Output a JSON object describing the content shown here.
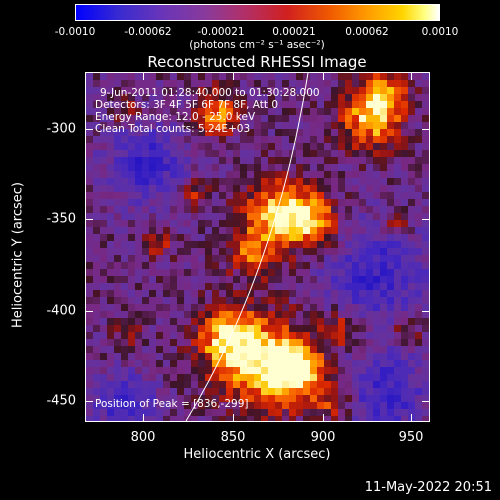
{
  "colorbar": {
    "ticks": [
      "-0.0010",
      "-0.00062",
      "-0.00021",
      "0.00021",
      "0.00062",
      "0.0010"
    ],
    "units": "(photons cm⁻² s⁻¹ asec⁻²)",
    "range": [
      -0.001,
      0.001
    ]
  },
  "title": "Reconstructed RHESSI Image",
  "annotations": {
    "time": "9-Jun-2011 01:28:40.000 to 01:30:28.000",
    "detectors": "Detectors: 3F 4F 5F 6F 7F 8F, Att 0",
    "energy": "Energy Range: 12.0 - 25.0 keV",
    "clean": "Clean     Total counts: 5.24E+03",
    "peak": "Position of Peak = [836,-299]"
  },
  "axes": {
    "xlabel": "Heliocentric X (arcsec)",
    "ylabel": "Heliocentric Y (arcsec)",
    "xticks": [
      "800",
      "850",
      "900",
      "950"
    ],
    "yticks": [
      "-300",
      "-350",
      "-400",
      "-450"
    ],
    "xrange": [
      765,
      958
    ],
    "yrange": [
      -466,
      -270
    ]
  },
  "timestamp": "11-May-2022 20:51"
}
